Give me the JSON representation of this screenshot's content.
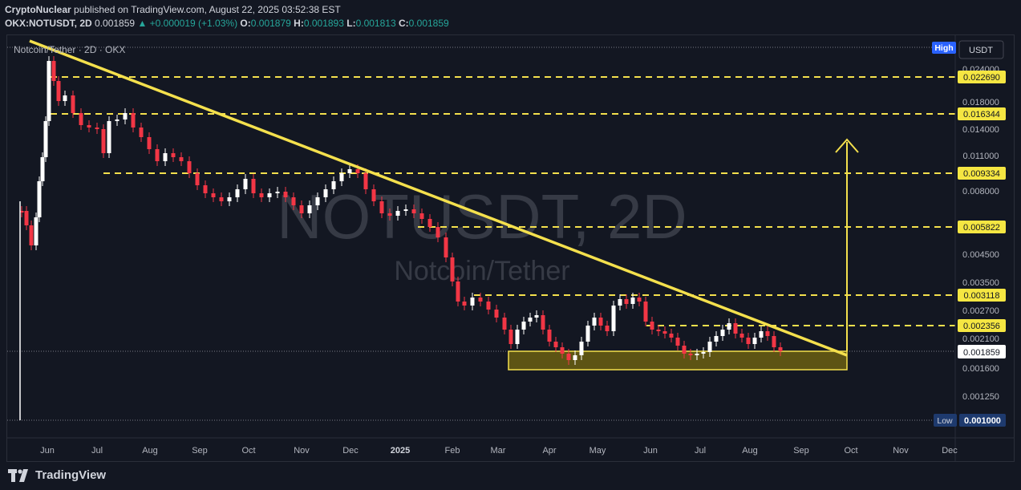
{
  "header": {
    "publisher": "CryptoNuclear",
    "published_text": "published on TradingView.com, August 22, 2025 03:52:38 EST",
    "symbol": "OKX:NOTUSDT, 2D",
    "last": "0.001859",
    "change": "▲ +0.000019 (+1.03%)",
    "o_label": "O:",
    "o": "0.001879",
    "h_label": "H:",
    "h": "0.001893",
    "l_label": "L:",
    "l": "0.001813",
    "c_label": "C:",
    "c": "0.001859"
  },
  "chart": {
    "legend_title": "Notcoin/Tether · 2D · OKX",
    "watermark_symbol": "NOTUSDT, 2D",
    "watermark_name": "Notcoin/Tether",
    "currency_button": "USDT",
    "high_tag": "High",
    "low_tag": "Low",
    "low_value": "0.001000",
    "price_axis": [
      "0.024000",
      "0.018000",
      "0.014000",
      "0.011000",
      "0.008000",
      "0.004500",
      "0.003500",
      "0.002700",
      "0.002100",
      "0.001600",
      "0.001250"
    ],
    "level_labels": [
      "0.022690",
      "0.016344",
      "0.009334",
      "0.005822",
      "0.003118",
      "0.002356"
    ],
    "current_price_label": "0.001859",
    "time_axis": [
      "Jun",
      "Jul",
      "Aug",
      "Sep",
      "Oct",
      "Nov",
      "Dec",
      "2025",
      "Feb",
      "Mar",
      "Apr",
      "May",
      "Jun",
      "Jul",
      "Aug",
      "Sep",
      "Oct",
      "Nov",
      "Dec"
    ],
    "colors": {
      "background": "#131722",
      "trendline": "#f4e04d",
      "support_zone": "#6b5f12",
      "level_tag": "#f5e642",
      "up_candle": "#ffffff",
      "down_candle": "#f23645",
      "axis_text": "#b2b5be"
    }
  },
  "footer": {
    "brand": "TradingView"
  }
}
